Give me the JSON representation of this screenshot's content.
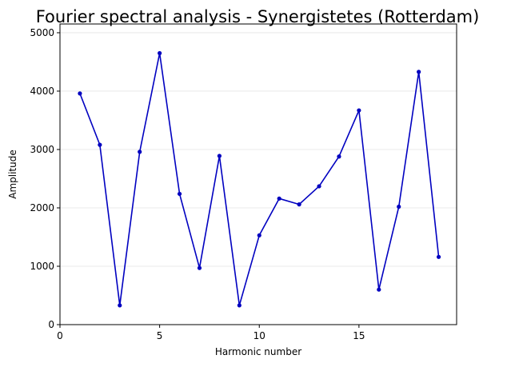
{
  "chart_data": {
    "type": "line",
    "title": "Fourier spectral analysis - Synergistetes (Rotterdam)",
    "xlabel": "Harmonic number",
    "ylabel": "Amplitude",
    "xlim": [
      0,
      19.9
    ],
    "ylim": [
      0,
      5150
    ],
    "xticks": [
      0,
      5,
      10,
      15
    ],
    "yticks": [
      0,
      1000,
      2000,
      3000,
      4000,
      5000
    ],
    "grid": "y",
    "legend": "none",
    "series": [
      {
        "color": "#0000c0",
        "marker": "circle",
        "x": [
          1,
          2,
          3,
          4,
          5,
          6,
          7,
          8,
          9,
          10,
          11,
          12,
          13,
          14,
          15,
          16,
          17,
          18,
          19
        ],
        "values": [
          3960,
          3080,
          330,
          2960,
          4650,
          2240,
          970,
          2890,
          330,
          1530,
          2160,
          2060,
          2370,
          2880,
          3670,
          600,
          2020,
          4330,
          1160
        ]
      }
    ]
  }
}
